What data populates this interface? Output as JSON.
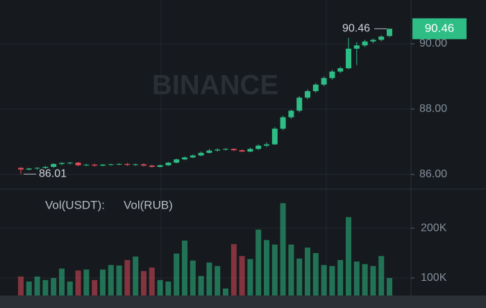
{
  "chart_data": {
    "type": "candlestick",
    "watermark": "BINANCE",
    "open": [
      86.2,
      86.15,
      86.18,
      86.2,
      86.23,
      86.32,
      86.35,
      86.36,
      86.28,
      86.3,
      86.27,
      86.3,
      86.31,
      86.32,
      86.29,
      86.31,
      86.27,
      86.23,
      86.28,
      86.36,
      86.46,
      86.52,
      86.58,
      86.66,
      86.73,
      86.76,
      86.78,
      86.74,
      86.7,
      86.78,
      86.88,
      86.92,
      87.4,
      87.75,
      87.95,
      88.35,
      88.55,
      88.75,
      88.95,
      89.15,
      89.25,
      89.85,
      89.95,
      90.07,
      90.12,
      90.24
    ],
    "high": [
      86.22,
      86.2,
      86.22,
      86.26,
      86.34,
      86.37,
      86.38,
      86.38,
      86.32,
      86.33,
      86.32,
      86.33,
      86.34,
      86.35,
      86.33,
      86.34,
      86.3,
      86.3,
      86.38,
      86.48,
      86.55,
      86.61,
      86.7,
      86.78,
      86.8,
      86.81,
      86.8,
      86.77,
      86.82,
      86.92,
      86.98,
      87.45,
      87.8,
      87.98,
      88.4,
      88.6,
      88.8,
      89.0,
      89.2,
      89.3,
      90.18,
      90.05,
      90.12,
      90.16,
      90.26,
      90.46
    ],
    "low": [
      86.01,
      86.12,
      86.14,
      86.17,
      86.2,
      86.28,
      86.31,
      86.25,
      86.25,
      86.24,
      86.25,
      86.27,
      86.28,
      86.26,
      86.26,
      86.24,
      86.21,
      86.21,
      86.26,
      86.34,
      86.44,
      86.5,
      86.56,
      86.64,
      86.7,
      86.73,
      86.71,
      86.68,
      86.68,
      86.75,
      86.84,
      86.9,
      87.35,
      87.7,
      87.9,
      88.3,
      88.5,
      88.7,
      88.9,
      89.1,
      89.22,
      89.35,
      89.9,
      90.02,
      90.08,
      90.2
    ],
    "close": [
      86.15,
      86.18,
      86.2,
      86.23,
      86.32,
      86.35,
      86.36,
      86.28,
      86.3,
      86.27,
      86.3,
      86.31,
      86.32,
      86.29,
      86.31,
      86.27,
      86.23,
      86.28,
      86.36,
      86.46,
      86.52,
      86.58,
      86.66,
      86.73,
      86.76,
      86.78,
      86.74,
      86.7,
      86.78,
      86.88,
      86.92,
      87.4,
      87.75,
      87.95,
      88.35,
      88.55,
      88.75,
      88.95,
      89.15,
      89.25,
      89.85,
      89.95,
      90.07,
      90.12,
      90.22,
      90.46
    ],
    "volume": [
      103000,
      93000,
      103000,
      96000,
      100000,
      119000,
      93000,
      115000,
      117000,
      96000,
      117000,
      126000,
      125000,
      136000,
      143000,
      114000,
      121000,
      96000,
      93000,
      149000,
      175000,
      135000,
      104000,
      131000,
      124000,
      79000,
      168000,
      144000,
      138000,
      197000,
      176000,
      167000,
      250000,
      167000,
      139000,
      161000,
      150000,
      126000,
      124000,
      136000,
      222000,
      133000,
      128000,
      124000,
      144000,
      100000
    ],
    "up_color": "#2ebd85",
    "down_color": "#e04a59",
    "ylim": [
      85.55,
      91.34
    ],
    "yticks": [
      {
        "value": 86,
        "label": "86.00"
      },
      {
        "value": 88,
        "label": "88.00"
      },
      {
        "value": 90,
        "label": "90.00"
      }
    ],
    "high_marker": 90.46,
    "low_marker": 86.01,
    "last_price": 90.46,
    "volume_title": "Vol(USDT):",
    "volume_subtitle": "Vol(RUB)",
    "volume_ylim": [
      65000,
      274000
    ],
    "volume_yticks": [
      {
        "value": 100000,
        "label": "100K"
      },
      {
        "value": 200000,
        "label": "200K"
      }
    ]
  }
}
